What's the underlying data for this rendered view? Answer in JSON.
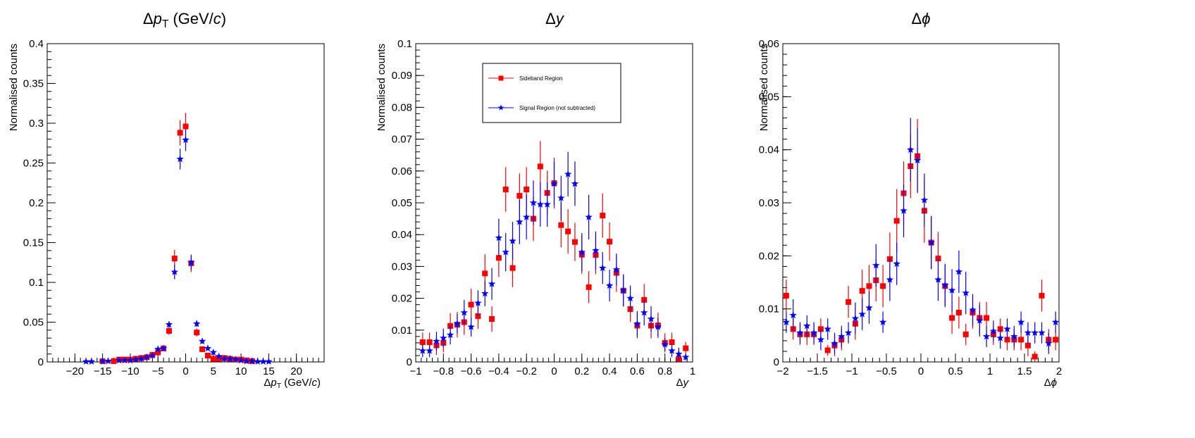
{
  "chart_data": [
    {
      "type": "scatter",
      "title": "Δp_T (GeV/c)",
      "title_parts": {
        "delta": "Δ",
        "var": "p",
        "sub": "T",
        "unit_open": " (GeV/",
        "unit_c": "c",
        "unit_close": ")"
      },
      "xlabel": "Δp_T (GeV/c)",
      "xlabel_parts": {
        "delta": "Δ",
        "var": "p",
        "sub": "T",
        "unit_open": " (GeV/",
        "unit_c": "c",
        "unit_close": ")"
      },
      "ylabel": "Normalised counts",
      "xlim": [
        -25,
        25
      ],
      "ylim": [
        0,
        0.4
      ],
      "xticks": [
        -20,
        -15,
        -10,
        -5,
        0,
        5,
        10,
        15,
        20
      ],
      "xtick_labels": [
        "−20",
        "−15",
        "−10",
        "−5",
        "0",
        "5",
        "10",
        "15",
        "20"
      ],
      "yticks": [
        0,
        0.05,
        0.1,
        0.15,
        0.2,
        0.25,
        0.3,
        0.35,
        0.4
      ],
      "ytick_labels": [
        "0",
        "0.05",
        "0.1",
        "0.15",
        "0.2",
        "0.25",
        "0.3",
        "0.35",
        "0.4"
      ],
      "legend": "none",
      "series": [
        {
          "name": "Sideband Region",
          "color": "#ff0000",
          "marker": "square",
          "x": [
            -15,
            -13,
            -12,
            -11,
            -10,
            -9,
            -8,
            -7,
            -6,
            -5,
            -4,
            -3,
            -2,
            -1,
            0,
            1,
            2,
            3,
            4,
            5,
            6,
            7,
            8,
            9,
            10,
            11,
            12
          ],
          "y": [
            0.001,
            0.001,
            0.003,
            0.003,
            0.003,
            0.004,
            0.005,
            0.006,
            0.009,
            0.012,
            0.017,
            0.039,
            0.13,
            0.288,
            0.296,
            0.124,
            0.037,
            0.016,
            0.008,
            0.004,
            0.004,
            0.005,
            0.004,
            0.003,
            0.003,
            0.002,
            0.001
          ],
          "err": [
            0.001,
            0.001,
            0.001,
            0.001,
            0.001,
            0.001,
            0.001,
            0.002,
            0.002,
            0.002,
            0.003,
            0.005,
            0.011,
            0.016,
            0.017,
            0.011,
            0.005,
            0.003,
            0.002,
            0.001,
            0.001,
            0.001,
            0.001,
            0.001,
            0.001,
            0.001,
            0.001
          ]
        },
        {
          "name": "Signal Region (not subtracted)",
          "color": "#0000ff",
          "marker": "star",
          "x": [
            -18,
            -17,
            -15,
            -14,
            -12,
            -11,
            -10,
            -9,
            -8,
            -7,
            -6,
            -5,
            -4,
            -3,
            -2,
            -1,
            0,
            1,
            2,
            3,
            4,
            5,
            6,
            7,
            8,
            9,
            10,
            11,
            12,
            13,
            14,
            15
          ],
          "y": [
            0.0005,
            0.0005,
            0.001,
            0.001,
            0.002,
            0.002,
            0.002,
            0.003,
            0.004,
            0.006,
            0.008,
            0.016,
            0.017,
            0.047,
            0.113,
            0.255,
            0.279,
            0.125,
            0.048,
            0.026,
            0.017,
            0.012,
            0.007,
            0.004,
            0.004,
            0.003,
            0.002,
            0.001,
            0.001,
            0.0005,
            0.0005,
            0.0005
          ],
          "err": [
            0.0005,
            0.0005,
            0.001,
            0.001,
            0.001,
            0.001,
            0.001,
            0.001,
            0.001,
            0.002,
            0.002,
            0.002,
            0.002,
            0.004,
            0.009,
            0.013,
            0.014,
            0.009,
            0.004,
            0.003,
            0.002,
            0.002,
            0.001,
            0.001,
            0.001,
            0.001,
            0.001,
            0.001,
            0.001,
            0.0005,
            0.0005,
            0.0005
          ]
        }
      ]
    },
    {
      "type": "scatter",
      "title": "Δy",
      "title_parts": {
        "delta": "Δ",
        "var": "y"
      },
      "xlabel": "Δy",
      "xlabel_parts": {
        "delta": "Δ",
        "var": "y"
      },
      "ylabel": "Normalised counts",
      "xlim": [
        -1,
        1
      ],
      "ylim": [
        0,
        0.1
      ],
      "xticks": [
        -1,
        -0.8,
        -0.6,
        -0.4,
        -0.2,
        0,
        0.2,
        0.4,
        0.6,
        0.8,
        1
      ],
      "xtick_labels": [
        "−1",
        "−0.8",
        "−0.6",
        "−0.4",
        "−0.2",
        "0",
        "0.2",
        "0.4",
        "0.6",
        "0.8",
        "1"
      ],
      "yticks": [
        0,
        0.01,
        0.02,
        0.03,
        0.04,
        0.05,
        0.06,
        0.07,
        0.08,
        0.09,
        0.1
      ],
      "ytick_labels": [
        "0",
        "0.01",
        "0.02",
        "0.03",
        "0.04",
        "0.05",
        "0.06",
        "0.07",
        "0.08",
        "0.09",
        "0.1"
      ],
      "legend": "top-left",
      "series": [
        {
          "name": "Sideband Region",
          "color": "#ff0000",
          "marker": "square",
          "x": [
            -0.95,
            -0.85,
            -0.75,
            -0.65,
            -0.55,
            -0.45,
            -0.35,
            -0.25,
            -0.15,
            -0.05,
            0.05,
            0.15,
            0.25,
            0.35,
            0.45,
            0.55,
            0.65,
            0.75,
            0.85,
            0.95,
            -0.9,
            -0.8,
            -0.7,
            -0.6,
            -0.5,
            -0.4,
            -0.3,
            -0.2,
            -0.1,
            0.0,
            0.1,
            0.2,
            0.3,
            0.4,
            0.5,
            0.6,
            0.7,
            0.8,
            0.9
          ],
          "y": [
            0.0062,
            0.0052,
            0.0113,
            0.0125,
            0.0144,
            0.0135,
            0.0542,
            0.0522,
            0.045,
            0.0531,
            0.043,
            0.0377,
            0.0235,
            0.046,
            0.028,
            0.0166,
            0.0195,
            0.0115,
            0.0062,
            0.0043,
            0.0062,
            0.006,
            0.0117,
            0.018,
            0.0278,
            0.0327,
            0.0295,
            0.0542,
            0.0614,
            0.0562,
            0.041,
            0.0337,
            0.0336,
            0.0378,
            0.0224,
            0.0114,
            0.0114,
            0.006,
            0.001
          ],
          "err": [
            0.003,
            0.003,
            0.004,
            0.004,
            0.004,
            0.004,
            0.007,
            0.007,
            0.007,
            0.007,
            0.007,
            0.006,
            0.005,
            0.007,
            0.006,
            0.004,
            0.005,
            0.004,
            0.003,
            0.002,
            0.003,
            0.003,
            0.004,
            0.005,
            0.006,
            0.006,
            0.006,
            0.007,
            0.008,
            0.008,
            0.007,
            0.006,
            0.006,
            0.006,
            0.005,
            0.004,
            0.004,
            0.003,
            0.001
          ]
        },
        {
          "name": "Signal Region (not subtracted)",
          "color": "#0000ff",
          "marker": "star",
          "x": [
            -0.95,
            -0.9,
            -0.85,
            -0.8,
            -0.75,
            -0.7,
            -0.65,
            -0.6,
            -0.55,
            -0.5,
            -0.45,
            -0.4,
            -0.35,
            -0.3,
            -0.25,
            -0.2,
            -0.15,
            -0.1,
            -0.05,
            0.0,
            0.05,
            0.1,
            0.15,
            0.2,
            0.25,
            0.3,
            0.35,
            0.4,
            0.45,
            0.5,
            0.55,
            0.6,
            0.65,
            0.7,
            0.75,
            0.8,
            0.85,
            0.9,
            0.95
          ],
          "y": [
            0.0035,
            0.0035,
            0.0065,
            0.0075,
            0.0085,
            0.012,
            0.0155,
            0.011,
            0.0185,
            0.0215,
            0.0245,
            0.039,
            0.0345,
            0.038,
            0.044,
            0.0455,
            0.05,
            0.0495,
            0.0495,
            0.056,
            0.0515,
            0.059,
            0.056,
            0.0345,
            0.0455,
            0.035,
            0.0295,
            0.024,
            0.029,
            0.0225,
            0.02,
            0.012,
            0.0155,
            0.0135,
            0.011,
            0.0055,
            0.0035,
            0.0025,
            0.0015
          ],
          "err": [
            0.002,
            0.002,
            0.003,
            0.003,
            0.003,
            0.003,
            0.004,
            0.003,
            0.004,
            0.004,
            0.005,
            0.006,
            0.006,
            0.006,
            0.007,
            0.007,
            0.007,
            0.007,
            0.007,
            0.007,
            0.007,
            0.007,
            0.007,
            0.006,
            0.007,
            0.006,
            0.005,
            0.005,
            0.005,
            0.005,
            0.004,
            0.004,
            0.004,
            0.004,
            0.003,
            0.002,
            0.002,
            0.002,
            0.001
          ]
        }
      ],
      "legend_entries": [
        "Sideband Region",
        "Signal Region (not subtracted)"
      ]
    },
    {
      "type": "scatter",
      "title": "Δϕ",
      "title_parts": {
        "delta": "Δ",
        "var": "ϕ"
      },
      "xlabel": "Δϕ",
      "xlabel_parts": {
        "delta": "Δ",
        "var": "ϕ"
      },
      "ylabel": "Normalised counts",
      "xlim": [
        -2,
        2
      ],
      "ylim": [
        0,
        0.06
      ],
      "xticks": [
        -2,
        -1.5,
        -1,
        -0.5,
        0,
        0.5,
        1,
        1.5,
        2
      ],
      "xtick_labels": [
        "−2",
        "−1.5",
        "−1",
        "−0.5",
        "0",
        "0.5",
        "1",
        "1.5",
        "2"
      ],
      "yticks": [
        0,
        0.01,
        0.02,
        0.03,
        0.04,
        0.05,
        0.06
      ],
      "ytick_labels": [
        "0",
        "0.01",
        "0.02",
        "0.03",
        "0.04",
        "0.05",
        "0.06"
      ],
      "legend": "none",
      "series": [
        {
          "name": "Sideband Region",
          "color": "#ff0000",
          "marker": "square",
          "x": [
            -1.95,
            -1.85,
            -1.75,
            -1.65,
            -1.55,
            -1.45,
            -1.35,
            -1.25,
            -1.15,
            -1.05,
            -0.95,
            -0.85,
            -0.75,
            -0.65,
            -0.55,
            -0.45,
            -0.35,
            -0.25,
            -0.15,
            -0.05,
            0.05,
            0.15,
            0.25,
            0.35,
            0.45,
            0.55,
            0.65,
            0.75,
            0.85,
            0.95,
            1.05,
            1.15,
            1.25,
            1.35,
            1.45,
            1.55,
            1.65,
            1.75,
            1.85,
            1.95
          ],
          "y": [
            0.0125,
            0.0062,
            0.0052,
            0.0052,
            0.0052,
            0.0062,
            0.0022,
            0.0031,
            0.0042,
            0.0113,
            0.0072,
            0.0134,
            0.0143,
            0.0154,
            0.0143,
            0.0194,
            0.0266,
            0.0318,
            0.0369,
            0.0388,
            0.0285,
            0.0225,
            0.0195,
            0.0143,
            0.0083,
            0.0093,
            0.0052,
            0.0093,
            0.0083,
            0.0083,
            0.0052,
            0.0062,
            0.0042,
            0.0042,
            0.0042,
            0.0031,
            0.001,
            0.0125,
            0.0042,
            0.0042
          ],
          "err": [
            0.003,
            0.002,
            0.002,
            0.002,
            0.002,
            0.002,
            0.001,
            0.002,
            0.002,
            0.003,
            0.003,
            0.004,
            0.004,
            0.004,
            0.004,
            0.005,
            0.006,
            0.006,
            0.006,
            0.007,
            0.006,
            0.005,
            0.005,
            0.004,
            0.003,
            0.003,
            0.002,
            0.003,
            0.003,
            0.003,
            0.002,
            0.002,
            0.002,
            0.002,
            0.002,
            0.002,
            0.001,
            0.003,
            0.002,
            0.002
          ]
        },
        {
          "name": "Signal Region (not subtracted)",
          "color": "#0000ff",
          "marker": "star",
          "x": [
            -1.95,
            -1.85,
            -1.75,
            -1.65,
            -1.55,
            -1.45,
            -1.35,
            -1.25,
            -1.15,
            -1.05,
            -0.95,
            -0.85,
            -0.75,
            -0.65,
            -0.55,
            -0.45,
            -0.35,
            -0.25,
            -0.15,
            -0.05,
            0.05,
            0.15,
            0.25,
            0.35,
            0.45,
            0.55,
            0.65,
            0.75,
            0.85,
            0.95,
            1.05,
            1.15,
            1.25,
            1.35,
            1.45,
            1.55,
            1.65,
            1.75,
            1.85,
            1.95
          ],
          "y": [
            0.0075,
            0.0088,
            0.0055,
            0.0068,
            0.0055,
            0.0042,
            0.0062,
            0.0035,
            0.0048,
            0.0055,
            0.0082,
            0.009,
            0.0102,
            0.0182,
            0.0075,
            0.0155,
            0.0185,
            0.0285,
            0.04,
            0.038,
            0.0305,
            0.0225,
            0.0155,
            0.0145,
            0.0135,
            0.017,
            0.013,
            0.0098,
            0.0078,
            0.0048,
            0.0058,
            0.0045,
            0.0062,
            0.0048,
            0.0075,
            0.0055,
            0.0055,
            0.0055,
            0.0035,
            0.0075
          ],
          "err": [
            0.002,
            0.003,
            0.002,
            0.002,
            0.002,
            0.002,
            0.002,
            0.002,
            0.002,
            0.002,
            0.003,
            0.003,
            0.003,
            0.004,
            0.002,
            0.004,
            0.004,
            0.005,
            0.006,
            0.006,
            0.005,
            0.005,
            0.004,
            0.004,
            0.004,
            0.004,
            0.004,
            0.003,
            0.003,
            0.002,
            0.002,
            0.002,
            0.002,
            0.002,
            0.002,
            0.002,
            0.002,
            0.002,
            0.002,
            0.002
          ]
        }
      ]
    }
  ],
  "colors": {
    "sideband": "#ff0000",
    "signal": "#0000ff",
    "axis": "#000000"
  }
}
